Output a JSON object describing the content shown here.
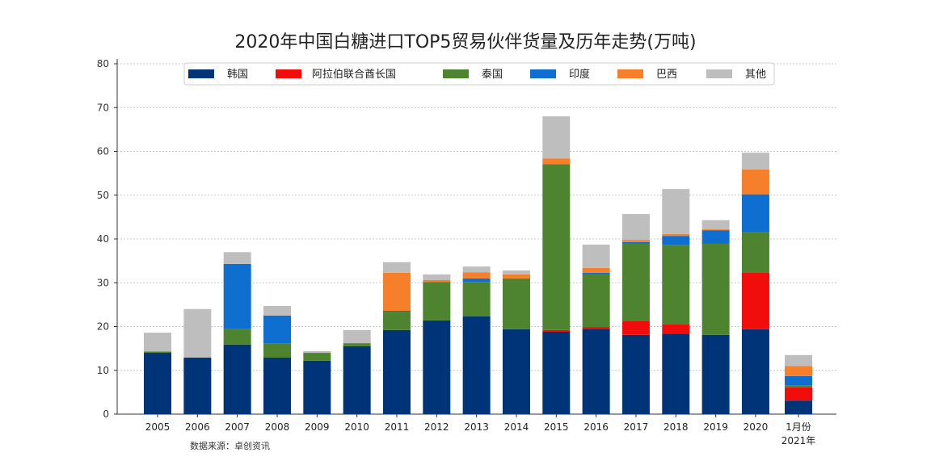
{
  "chart_data": {
    "type": "bar",
    "stacked": true,
    "title": "2020年中国白糖进口TOP5贸易伙伴货量及历年走势(万吨)",
    "xlabel": "",
    "ylabel": "",
    "ylim": [
      0,
      80
    ],
    "yticks": [
      0,
      10,
      20,
      30,
      40,
      50,
      60,
      70,
      80
    ],
    "grid": true,
    "legend_position": "top",
    "categories": [
      "2005",
      "2006",
      "2007",
      "2008",
      "2009",
      "2010",
      "2011",
      "2012",
      "2013",
      "2014",
      "2015",
      "2016",
      "2017",
      "2018",
      "2019",
      "2020",
      "1月份\n2021年"
    ],
    "series": [
      {
        "name": "韩国",
        "color": "#003478",
        "values": [
          14.0,
          12.9,
          15.9,
          12.9,
          12.2,
          15.5,
          19.2,
          21.4,
          22.3,
          19.4,
          18.8,
          19.5,
          18.1,
          18.4,
          18.1,
          19.4,
          3.1
        ]
      },
      {
        "name": "阿拉伯联合酋长国",
        "color": "#f20d0d",
        "values": [
          0,
          0,
          0,
          0,
          0,
          0,
          0,
          0,
          0,
          0,
          0.4,
          0.4,
          3.1,
          2.2,
          0,
          13.0,
          3.0
        ]
      },
      {
        "name": "泰国",
        "color": "#4e8430",
        "values": [
          0.3,
          0,
          3.5,
          3.3,
          1.8,
          0.7,
          4.2,
          8.8,
          7.9,
          11.6,
          37.9,
          12.0,
          17.7,
          18.1,
          20.8,
          9.1,
          0.4
        ]
      },
      {
        "name": "印度",
        "color": "#0f6fd0",
        "values": [
          0,
          0,
          14.9,
          6.3,
          0,
          0,
          0.2,
          0,
          0.8,
          0,
          0,
          0.4,
          0.4,
          2.0,
          3.1,
          8.7,
          2.2
        ]
      },
      {
        "name": "巴西",
        "color": "#f57f2a",
        "values": [
          0,
          0,
          0,
          0,
          0,
          0,
          8.7,
          0.4,
          1.4,
          0.9,
          1.3,
          1.1,
          0.5,
          0.4,
          0.2,
          5.7,
          2.3
        ]
      },
      {
        "name": "其他",
        "color": "#bebebe",
        "values": [
          4.3,
          11.1,
          2.7,
          2.2,
          0.4,
          3.0,
          2.4,
          1.3,
          1.3,
          0.9,
          9.6,
          5.3,
          5.9,
          10.3,
          2.1,
          3.8,
          2.5
        ]
      }
    ],
    "source": "数据来源：卓创资讯"
  }
}
